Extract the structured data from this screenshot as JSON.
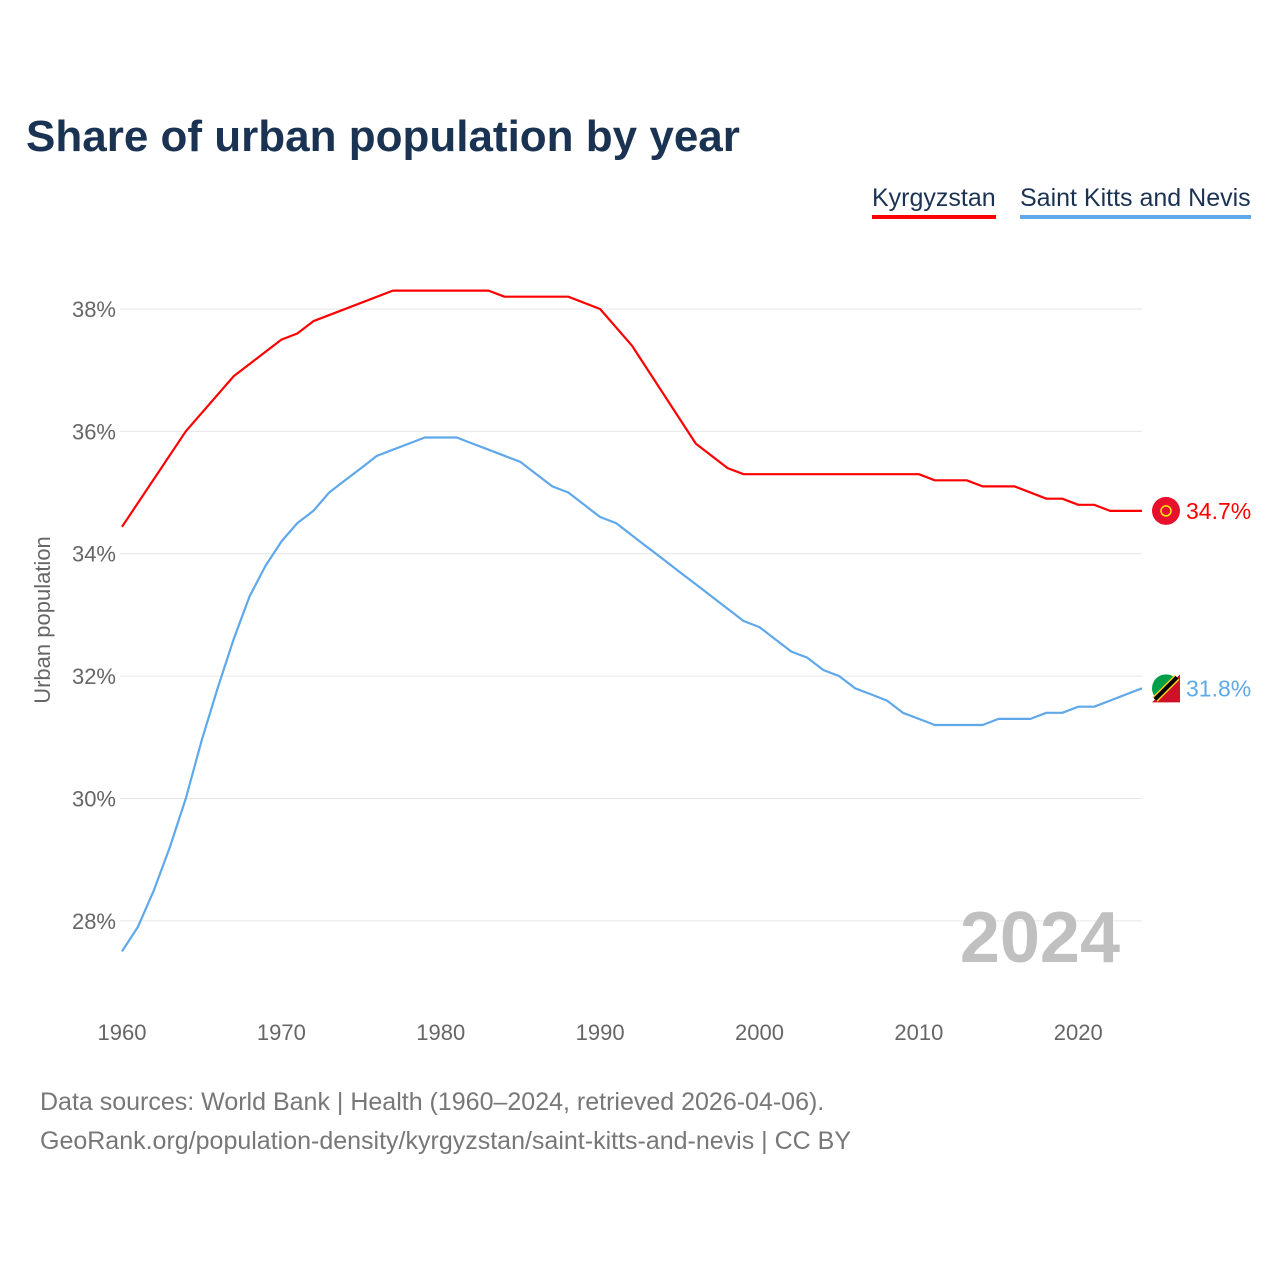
{
  "chart_data": {
    "type": "line",
    "title": "Share of urban population by year",
    "xlabel": "",
    "ylabel": "Urban population",
    "xlim": [
      1960,
      2024
    ],
    "ylim": [
      27,
      39
    ],
    "x_ticks": [
      "1960",
      "1970",
      "1980",
      "1990",
      "2000",
      "2010",
      "2020"
    ],
    "y_ticks": [
      "28%",
      "30%",
      "32%",
      "34%",
      "36%",
      "38%"
    ],
    "grid": true,
    "legend_position": "top-right",
    "year_label": "2024",
    "series": [
      {
        "name": "Kyrgyzstan",
        "color": "#ff0000",
        "end_label": "34.7%",
        "points": [
          [
            1960,
            34.44
          ],
          [
            1964,
            36.0
          ],
          [
            1967,
            36.9
          ],
          [
            1970,
            37.5
          ],
          [
            1971,
            37.6
          ],
          [
            1972,
            37.8
          ],
          [
            1977,
            38.3
          ],
          [
            1983,
            38.3
          ],
          [
            1984,
            38.2
          ],
          [
            1988,
            38.2
          ],
          [
            1990,
            38.0
          ],
          [
            1992,
            37.4
          ],
          [
            1996,
            35.8
          ],
          [
            1998,
            35.4
          ],
          [
            1999,
            35.3
          ],
          [
            2010,
            35.3
          ],
          [
            2011,
            35.2
          ],
          [
            2013,
            35.2
          ],
          [
            2014,
            35.1
          ],
          [
            2016,
            35.1
          ],
          [
            2018,
            34.9
          ],
          [
            2019,
            34.9
          ],
          [
            2020,
            34.8
          ],
          [
            2021,
            34.8
          ],
          [
            2022,
            34.7
          ],
          [
            2024,
            34.7
          ]
        ]
      },
      {
        "name": "Saint Kitts and Nevis",
        "color": "#5fa8ea",
        "end_label": "31.8%",
        "points": [
          [
            1960,
            27.5
          ],
          [
            1961,
            27.9
          ],
          [
            1962,
            28.5
          ],
          [
            1963,
            29.2
          ],
          [
            1964,
            30.0
          ],
          [
            1965,
            30.95
          ],
          [
            1966,
            31.8
          ],
          [
            1967,
            32.6
          ],
          [
            1968,
            33.3
          ],
          [
            1969,
            33.8
          ],
          [
            1970,
            34.2
          ],
          [
            1971,
            34.5
          ],
          [
            1972,
            34.7
          ],
          [
            1973,
            35.0
          ],
          [
            1974,
            35.2
          ],
          [
            1975,
            35.4
          ],
          [
            1976,
            35.6
          ],
          [
            1977,
            35.7
          ],
          [
            1978,
            35.8
          ],
          [
            1979,
            35.9
          ],
          [
            1981,
            35.9
          ],
          [
            1982,
            35.8
          ],
          [
            1983,
            35.7
          ],
          [
            1984,
            35.6
          ],
          [
            1985,
            35.5
          ],
          [
            1986,
            35.3
          ],
          [
            1987,
            35.1
          ],
          [
            1988,
            35.0
          ],
          [
            1989,
            34.8
          ],
          [
            1990,
            34.6
          ],
          [
            1991,
            34.5
          ],
          [
            1992,
            34.3
          ],
          [
            1993,
            34.1
          ],
          [
            1994,
            33.9
          ],
          [
            1995,
            33.7
          ],
          [
            1996,
            33.5
          ],
          [
            1997,
            33.3
          ],
          [
            1998,
            33.1
          ],
          [
            1999,
            32.9
          ],
          [
            2000,
            32.8
          ],
          [
            2001,
            32.6
          ],
          [
            2002,
            32.4
          ],
          [
            2003,
            32.3
          ],
          [
            2004,
            32.1
          ],
          [
            2005,
            32.0
          ],
          [
            2006,
            31.8
          ],
          [
            2007,
            31.7
          ],
          [
            2008,
            31.6
          ],
          [
            2009,
            31.4
          ],
          [
            2010,
            31.3
          ],
          [
            2011,
            31.2
          ],
          [
            2014,
            31.2
          ],
          [
            2015,
            31.3
          ],
          [
            2017,
            31.3
          ],
          [
            2018,
            31.4
          ],
          [
            2019,
            31.4
          ],
          [
            2020,
            31.5
          ],
          [
            2021,
            31.5
          ],
          [
            2022,
            31.6
          ],
          [
            2023,
            31.7
          ],
          [
            2024,
            31.8
          ]
        ]
      }
    ]
  },
  "footer": {
    "line1": "Data sources: World Bank | Health (1960–2024, retrieved 2026-04-06).",
    "line2": "GeoRank.org/population-density/kyrgyzstan/saint-kitts-and-nevis | CC BY"
  }
}
